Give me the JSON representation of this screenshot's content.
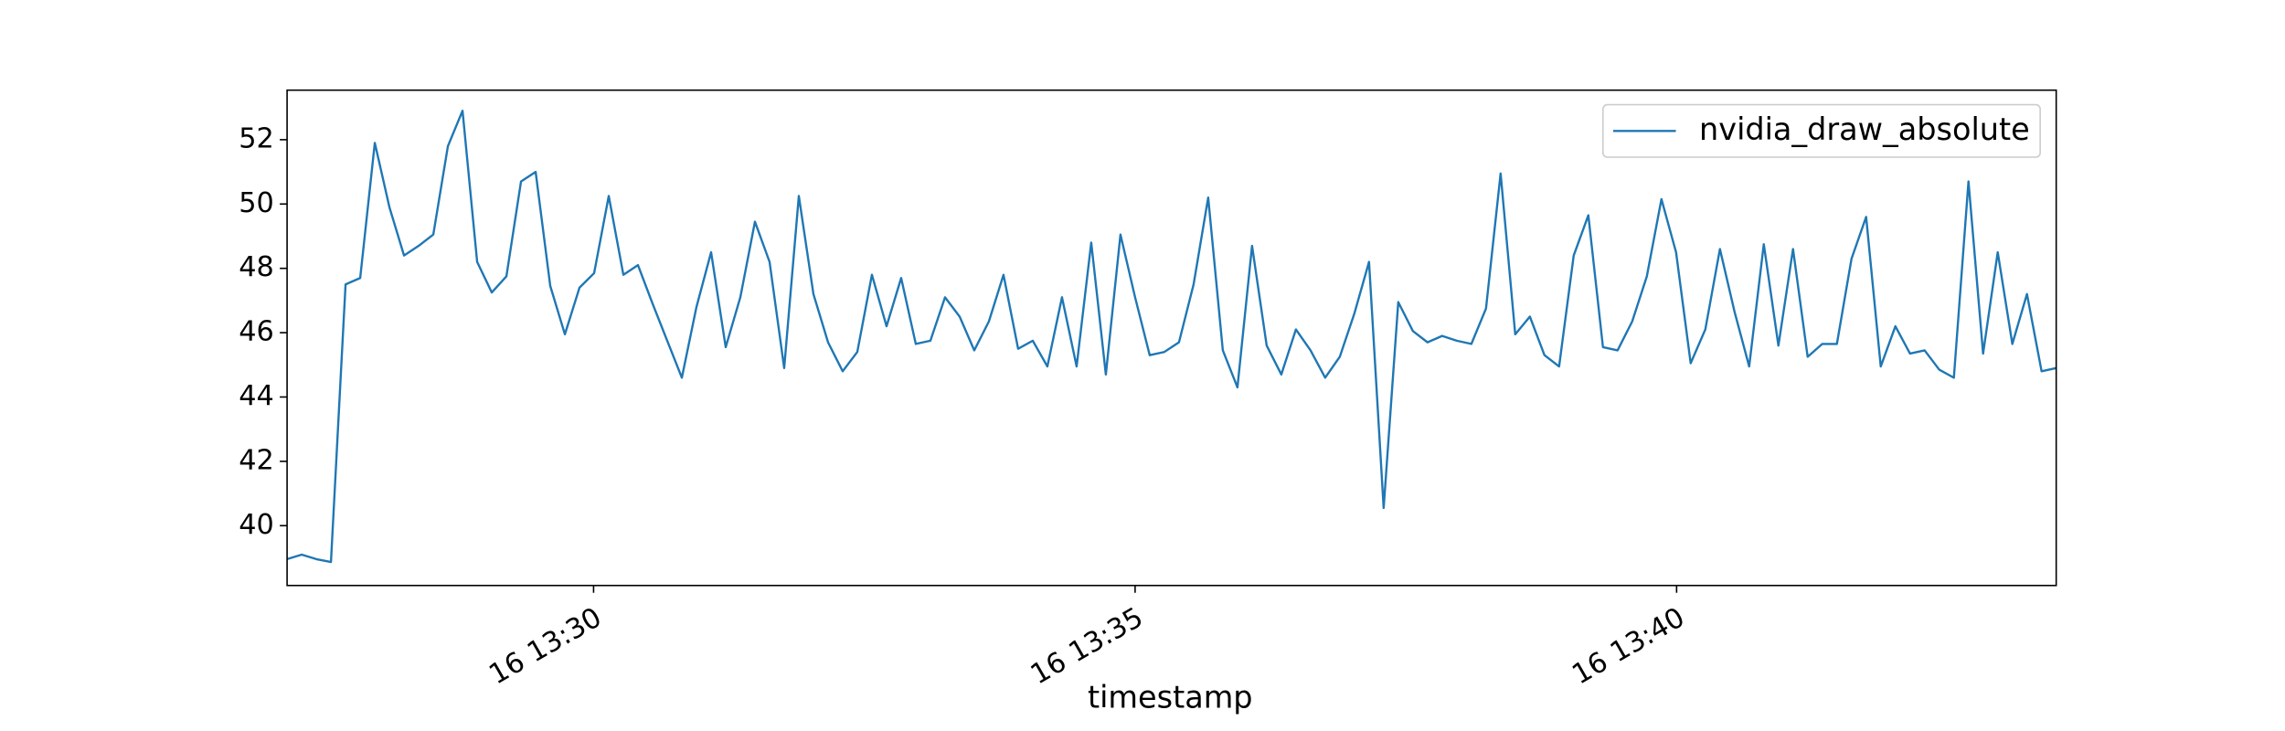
{
  "chart_data": {
    "type": "line",
    "x_label": "timestamp",
    "x": [
      807.17,
      807.305,
      807.44,
      807.575,
      807.71,
      807.845,
      807.98,
      808.115,
      808.25,
      808.385,
      808.52,
      808.655,
      808.79,
      808.925,
      809.06,
      809.195,
      809.33,
      809.465,
      809.6,
      809.735,
      809.87,
      810.005,
      810.14,
      810.275,
      810.41,
      810.545,
      810.68,
      810.815,
      810.95,
      811.085,
      811.22,
      811.355,
      811.49,
      811.625,
      811.76,
      811.895,
      812.03,
      812.165,
      812.3,
      812.435,
      812.57,
      812.705,
      812.84,
      812.975,
      813.11,
      813.245,
      813.38,
      813.515,
      813.65,
      813.785,
      813.92,
      814.055,
      814.19,
      814.325,
      814.46,
      814.595,
      814.73,
      814.865,
      815.0,
      815.135,
      815.27,
      815.405,
      815.54,
      815.675,
      815.81,
      815.945,
      816.08,
      816.215,
      816.35,
      816.485,
      816.62,
      816.755,
      816.89,
      817.025,
      817.16,
      817.295,
      817.43,
      817.565,
      817.7,
      817.835,
      817.97,
      818.105,
      818.24,
      818.375,
      818.51,
      818.645,
      818.78,
      818.915,
      819.05,
      819.185,
      819.32,
      819.455,
      819.59,
      819.725,
      819.86,
      819.995,
      820.13,
      820.265,
      820.4,
      820.535,
      820.67,
      820.805,
      820.94,
      821.075,
      821.21,
      821.345,
      821.48,
      821.615,
      821.75,
      821.885,
      822.02,
      822.155,
      822.29,
      822.425,
      822.56,
      822.695,
      822.83,
      822.965,
      823.1,
      823.235,
      823.37,
      823.505
    ],
    "series": [
      {
        "name": "nvidia_draw_absolute",
        "color": "#1f77b4",
        "values": [
          38.96,
          39.1,
          38.96,
          38.87,
          47.5,
          47.7,
          51.9,
          49.9,
          48.4,
          48.7,
          49.05,
          51.8,
          52.9,
          48.2,
          47.25,
          47.75,
          50.7,
          51.0,
          47.45,
          45.95,
          47.4,
          47.85,
          50.25,
          47.8,
          48.1,
          46.9,
          45.75,
          44.6,
          46.8,
          48.5,
          45.55,
          47.1,
          49.45,
          48.2,
          44.9,
          50.25,
          47.2,
          45.7,
          44.8,
          45.4,
          47.8,
          46.2,
          47.7,
          45.65,
          45.75,
          47.1,
          46.5,
          45.45,
          46.35,
          47.8,
          45.5,
          45.75,
          44.95,
          47.1,
          44.95,
          48.8,
          44.7,
          49.05,
          47.1,
          45.3,
          45.4,
          45.7,
          47.5,
          50.2,
          45.45,
          44.3,
          48.7,
          45.6,
          44.7,
          46.1,
          45.45,
          44.6,
          45.25,
          46.6,
          48.2,
          40.55,
          46.95,
          46.05,
          45.7,
          45.9,
          45.75,
          45.65,
          46.75,
          50.95,
          45.95,
          46.5,
          45.3,
          44.95,
          48.4,
          49.65,
          45.55,
          45.45,
          46.35,
          47.75,
          50.15,
          48.5,
          45.05,
          46.1,
          48.6,
          46.65,
          44.95,
          48.75,
          45.6,
          48.6,
          45.25,
          45.65,
          45.65,
          48.3,
          49.6,
          44.95,
          46.2,
          45.35,
          45.45,
          44.85,
          44.6,
          50.7,
          45.35,
          48.5,
          45.65,
          47.2,
          44.8,
          44.9
        ]
      }
    ],
    "xlim": [
      807.17,
      823.505
    ],
    "xticks": [
      {
        "value": 810,
        "label": "16 13:30"
      },
      {
        "value": 815,
        "label": "16 13:35"
      },
      {
        "value": 820,
        "label": "16 13:40"
      }
    ],
    "ylim": [
      38.14,
      53.54
    ],
    "yticks": [
      40,
      42,
      44,
      46,
      48,
      50,
      52
    ],
    "legend": "upper right"
  }
}
